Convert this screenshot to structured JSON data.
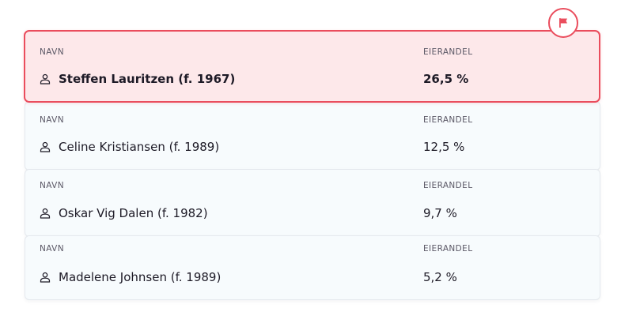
{
  "owners": {
    "col_name_label": "NAVN",
    "col_share_label": "EIERANDEL",
    "rows": [
      {
        "name": "Steffen Lauritzen (f. 1967)",
        "share": "26,5 %",
        "flagged": true
      },
      {
        "name": "Celine Kristiansen (f. 1989)",
        "share": "12,5 %",
        "flagged": false
      },
      {
        "name": "Oskar Vig Dalen (f. 1982)",
        "share": "9,7 %",
        "flagged": false
      },
      {
        "name": "Madelene Johnsen (f. 1989)",
        "share": "5,2 %",
        "flagged": false
      }
    ]
  },
  "flag_button": {
    "icon": "flag-icon"
  },
  "colors": {
    "accent": "#ea4d5d",
    "flagged_background": "#fde8ea",
    "card_background": "#f7fbfd",
    "text": "#1d1a26",
    "label": "#5b5866"
  }
}
